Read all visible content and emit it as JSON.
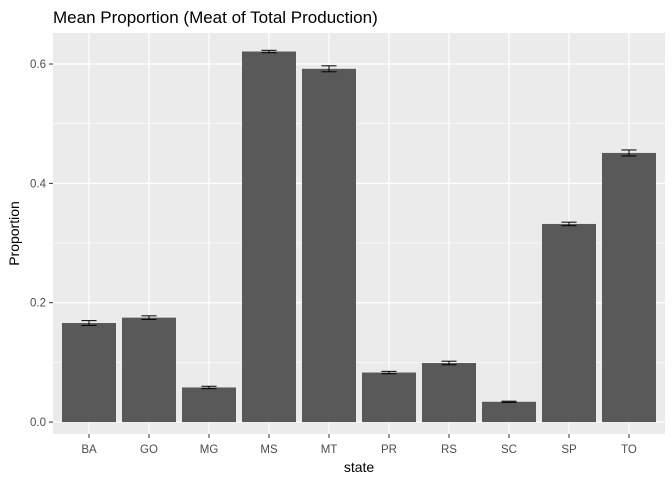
{
  "chart_data": {
    "type": "bar",
    "title": "Mean Proportion (Meat of Total Production)",
    "xlabel": "state",
    "ylabel": "Proportion",
    "categories": [
      "BA",
      "GO",
      "MG",
      "MS",
      "MT",
      "PR",
      "RS",
      "SC",
      "SP",
      "TO"
    ],
    "values": [
      0.166,
      0.175,
      0.058,
      0.621,
      0.592,
      0.083,
      0.099,
      0.034,
      0.332,
      0.451
    ],
    "error_low": [
      0.162,
      0.172,
      0.056,
      0.619,
      0.587,
      0.081,
      0.096,
      0.033,
      0.329,
      0.446
    ],
    "error_high": [
      0.17,
      0.178,
      0.06,
      0.623,
      0.597,
      0.085,
      0.102,
      0.035,
      0.335,
      0.456
    ],
    "yticks": [
      "0.0",
      "0.2",
      "0.4",
      "0.6"
    ],
    "ylim": [
      -0.02,
      0.652
    ],
    "grid": true,
    "colors": {
      "panel": "#ebebeb",
      "grid": "#ffffff",
      "bar": "#595959",
      "errorbar": "#000000"
    }
  }
}
